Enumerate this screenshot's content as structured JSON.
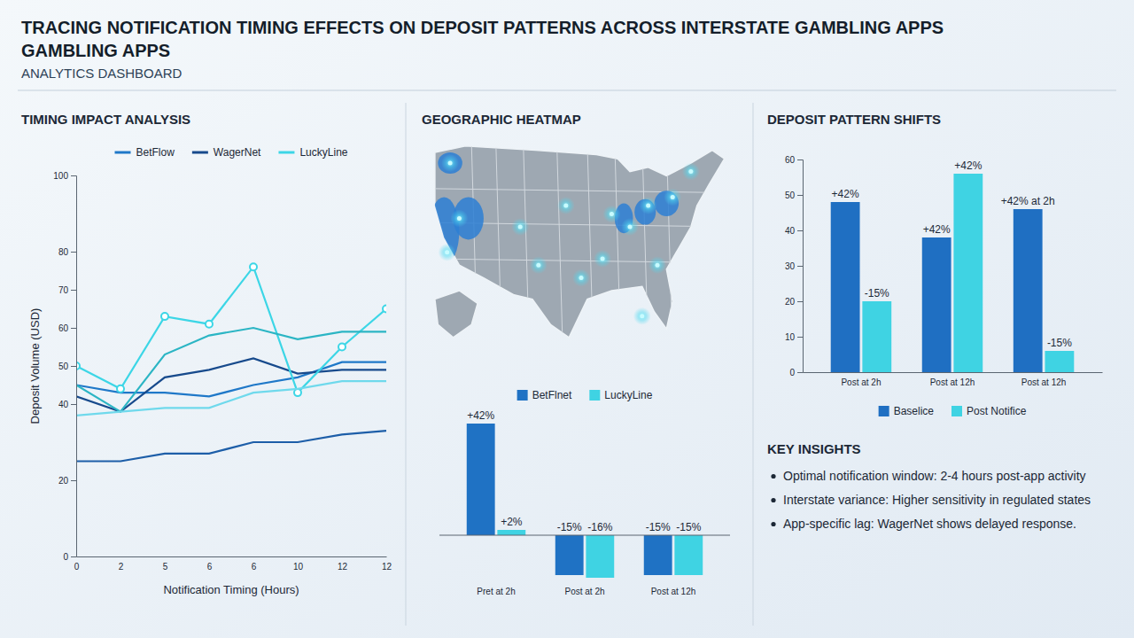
{
  "header": {
    "title_lines": [
      "TRACING NOTIFICATION TIMING EFFECTS ON DEPOSIT PATTERNS ACROSS INTERSTATE GAMBLING APPS",
      "GAMBLING APPS"
    ],
    "subtitle": "ANALYTICS DASHBOARD"
  },
  "map": {
    "title": "GEOGRAPHIC HEATMAP"
  },
  "chart_data": [
    {
      "type": "line",
      "title": "TIMING IMPACT ANALYSIS",
      "x_label": "Notification Timing (Hours)",
      "y_label": "Deposit Volume (USD)",
      "categories": [
        "0",
        "2",
        "5",
        "6",
        "6",
        "10",
        "12",
        "12"
      ],
      "series": [
        {
          "name": "BetFlow",
          "color": "#1f78c8",
          "values": [
            45,
            43,
            43,
            42,
            45,
            47,
            51,
            51
          ]
        },
        {
          "name": "WagerNet",
          "color": "#174a8c",
          "values": [
            42,
            38,
            47,
            49,
            52,
            48,
            49,
            49
          ]
        },
        {
          "name": "LuckyLine",
          "color": "#3cd6e6",
          "marker": "circle",
          "values": [
            50,
            44,
            63,
            61,
            76,
            43,
            55,
            65
          ]
        },
        {
          "color": "#2bb5c4",
          "values": [
            45,
            38,
            53,
            58,
            60,
            57,
            59,
            59
          ]
        },
        {
          "color": "#6fd9ec",
          "values": [
            37,
            38,
            39,
            39,
            43,
            44,
            46,
            46
          ]
        },
        {
          "color": "#1d5ea8",
          "values": [
            25,
            25,
            27,
            27,
            30,
            30,
            32,
            33
          ]
        }
      ],
      "ylim": [
        0,
        100
      ],
      "yticks": [
        0,
        20,
        40,
        50,
        60,
        70,
        80,
        100
      ],
      "grid": false,
      "legend": "top"
    },
    {
      "type": "bar",
      "categories": [
        "Pret at 2h",
        "Post at 2h",
        "Post at 12h"
      ],
      "series": [
        {
          "name": "BetFlnet",
          "color": "#1f72c4",
          "values": [
            42,
            -15,
            -15
          ],
          "value_labels": [
            "+42%",
            "-15%",
            "-15%"
          ]
        },
        {
          "name": "LuckyLine",
          "color": "#3fd3e3",
          "values": [
            2,
            -16,
            -15
          ],
          "value_labels": [
            "+2%",
            "-16%",
            "-15%"
          ]
        }
      ],
      "data_labels": true,
      "tick_labels": "x",
      "legend": "top"
    },
    {
      "type": "bar",
      "title": "DEPOSIT PATTERN SHIFTS",
      "categories": [
        "Post at 2h",
        "Post at 12h",
        "Post at 12h"
      ],
      "series": [
        {
          "name": "Baselice",
          "color": "#1f6fc2",
          "values": [
            48,
            38,
            46
          ],
          "annotations": [
            "+42%",
            "+42%",
            "+42% at 2h"
          ]
        },
        {
          "name": "Post Notifice",
          "color": "#3fd3e3",
          "values": [
            20,
            56,
            6
          ],
          "annotations": [
            "-15%",
            "+42%",
            "-15%"
          ]
        }
      ],
      "ylim": [
        0,
        60
      ],
      "yticks": [
        0,
        10,
        20,
        30,
        40,
        50,
        60
      ],
      "grid": false,
      "legend": "bottom"
    }
  ],
  "insights": {
    "title": "KEY INSIGHTS",
    "items": [
      "Optimal notification window: 2-4 hours post-app activity",
      "Interstate variance: Higher sensitivity in regulated states",
      "App-specific lag: WagerNet shows delayed response."
    ]
  }
}
